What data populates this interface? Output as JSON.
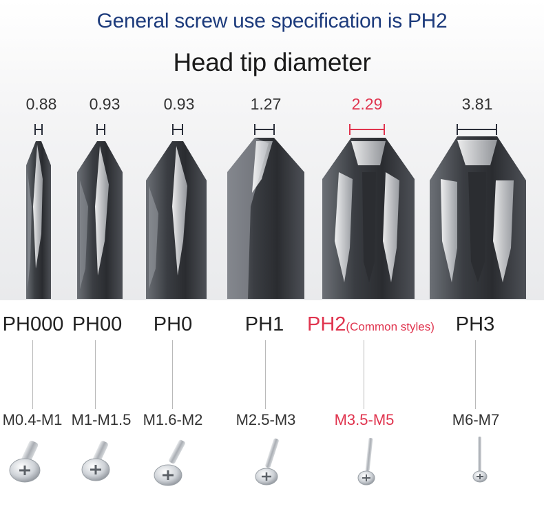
{
  "headline": "General screw use specification is PH2",
  "subhead": "Head tip diameter",
  "bits": [
    {
      "diameter": "0.88",
      "model": "PH000",
      "note": "",
      "screw_size": "M0.4-M1",
      "highlight": false
    },
    {
      "diameter": "0.93",
      "model": "PH00",
      "note": "",
      "screw_size": "M1-M1.5",
      "highlight": false
    },
    {
      "diameter": "0.93",
      "model": "PH0",
      "note": "",
      "screw_size": "M1.6-M2",
      "highlight": false
    },
    {
      "diameter": "1.27",
      "model": "PH1",
      "note": "",
      "screw_size": "M2.5-M3",
      "highlight": false
    },
    {
      "diameter": "2.29",
      "model": "PH2",
      "note": "(Common styles)",
      "screw_size": "M3.5-M5",
      "highlight": true
    },
    {
      "diameter": "3.81",
      "model": "PH3",
      "note": "",
      "screw_size": "M6-M7",
      "highlight": false
    }
  ],
  "colors": {
    "title_blue": "#1d3b7c",
    "highlight_red": "#e0344e",
    "text_dark": "#222222"
  },
  "icons": [
    "phillips-bit-tip-icon",
    "pan-head-screw-icon",
    "dimension-marker-icon"
  ]
}
